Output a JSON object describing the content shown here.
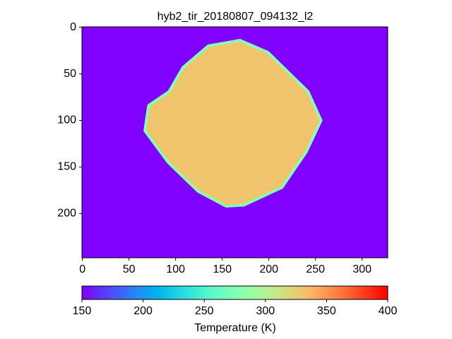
{
  "chart_data": {
    "type": "image",
    "title": "hyb2_tir_20180807_094132_l2",
    "xlim": [
      -0.5,
      327.5
    ],
    "ylim": [
      247.5,
      -0.5
    ],
    "xticks": [
      0,
      50,
      100,
      150,
      200,
      250,
      300
    ],
    "yticks": [
      0,
      50,
      100,
      150,
      200
    ],
    "colormap": "rainbow",
    "background_value": 150,
    "regions": [
      {
        "value": 330,
        "edge_value": 280,
        "x": [
          135,
          169,
          199,
          242,
          256,
          240,
          214,
          173,
          154,
          124,
          92,
          67,
          71,
          93,
          108
        ],
        "y": [
          20,
          14,
          27,
          69,
          100,
          134,
          172,
          191,
          192,
          176,
          145,
          111,
          84,
          69,
          43
        ]
      }
    ],
    "colorbar": {
      "label": "Temperature (K)",
      "lim": [
        150,
        400
      ],
      "ticks": [
        150,
        200,
        250,
        300,
        350,
        400
      ]
    }
  }
}
